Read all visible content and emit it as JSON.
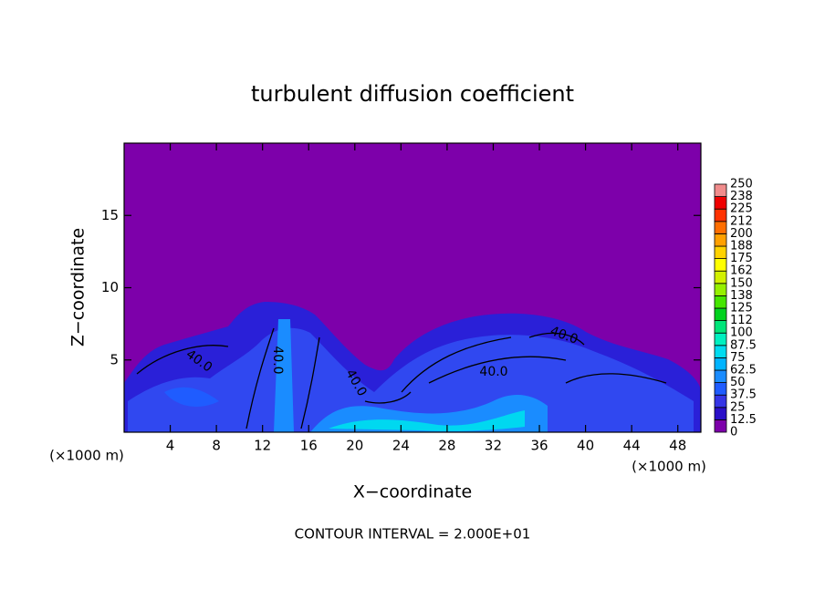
{
  "chart_data": {
    "type": "contour",
    "title": "turbulent diffusion coefficient",
    "xlabel": "X−coordinate",
    "ylabel": "Z−coordinate",
    "x_unit_left": "(×1000 m)",
    "x_unit_right": "(×1000 m)",
    "footer": "CONTOUR INTERVAL = 2.000E+01",
    "xlim": [
      0,
      50
    ],
    "ylim": [
      0,
      20
    ],
    "xticks": [
      4,
      8,
      12,
      16,
      20,
      24,
      28,
      32,
      36,
      40,
      44,
      48
    ],
    "yticks": [
      5,
      10,
      15
    ],
    "levels": [
      0,
      12.5,
      25,
      37.5,
      50,
      62.5,
      75,
      87.5,
      100,
      112,
      125,
      138,
      150,
      162,
      175,
      188,
      200,
      212,
      225,
      238,
      250
    ],
    "colors": [
      "#7d00aa",
      "#2a10c8",
      "#3535e6",
      "#1f5cff",
      "#1a8cff",
      "#00b4ff",
      "#00dcf0",
      "#00f0c0",
      "#00e67a",
      "#00d21e",
      "#46e600",
      "#96f000",
      "#d2f000",
      "#ffff00",
      "#ffd200",
      "#ffa000",
      "#ff6e00",
      "#ff3200",
      "#f00000",
      "#f08c8c"
    ],
    "contour_labels": [
      "40.0",
      "40.0",
      "40.0",
      "40.0",
      "40.0"
    ]
  }
}
